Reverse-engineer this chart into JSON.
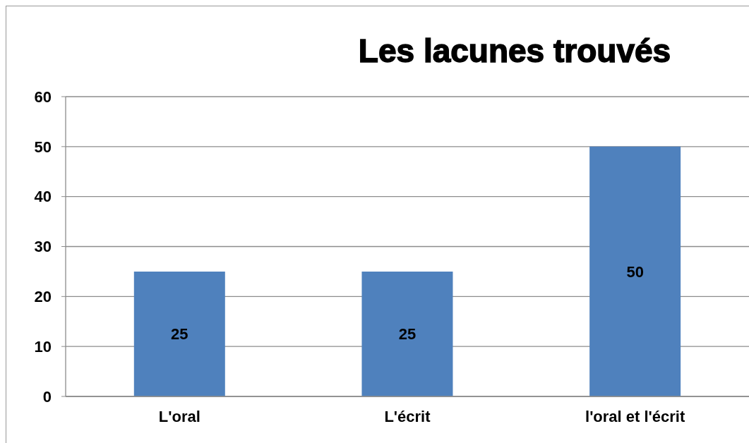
{
  "chart_data": {
    "type": "bar",
    "title": "Les lacunes trouvés",
    "categories": [
      "L'oral",
      "L'écrit",
      "l'oral et l'écrit"
    ],
    "values": [
      25,
      25,
      50
    ],
    "color": "#4f81bd",
    "ylim": [
      0,
      60
    ],
    "yticks": [
      0,
      10,
      20,
      30,
      40,
      50,
      60
    ],
    "grid": "y",
    "data_labels": true
  }
}
